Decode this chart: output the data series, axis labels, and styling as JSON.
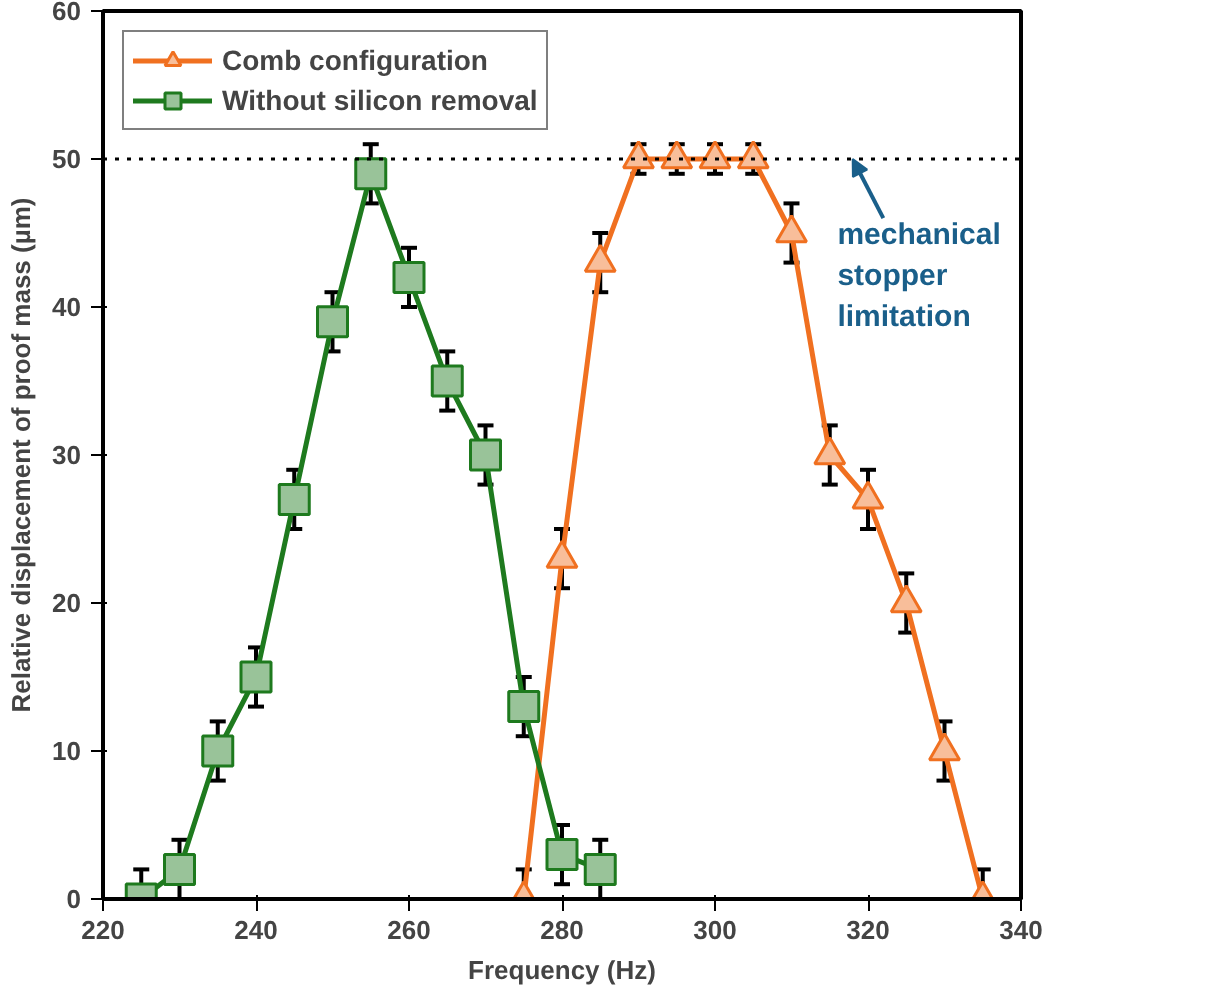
{
  "chart_data": {
    "type": "line",
    "xlabel": "Frequency (Hz)",
    "ylabel": "Relative displacement of proof mass (µm)",
    "xlim": [
      220,
      340
    ],
    "xticks": [
      220,
      240,
      260,
      280,
      300,
      320,
      340
    ],
    "ylim": [
      0,
      60
    ],
    "yticks": [
      0,
      10,
      20,
      30,
      40,
      50,
      60
    ],
    "grid": false,
    "legend": "top left",
    "line_style": "solid",
    "series": [
      {
        "name": "Comb configuration",
        "color": "#f07020",
        "marker": "triangle",
        "x": [
          275,
          280,
          285,
          290,
          295,
          300,
          305,
          310,
          315,
          320,
          325,
          330,
          335
        ],
        "values": [
          0,
          23,
          43,
          50,
          50,
          50,
          50,
          45,
          30,
          27,
          20,
          10,
          0
        ],
        "errors": [
          2,
          2,
          2,
          1,
          1,
          1,
          1,
          2,
          2,
          2,
          2,
          2,
          2
        ]
      },
      {
        "name": "Without silicon removal",
        "color": "#1e7a1e",
        "marker": "square",
        "x": [
          225,
          230,
          235,
          240,
          245,
          250,
          255,
          260,
          265,
          270,
          275,
          280,
          285
        ],
        "values": [
          0,
          2,
          10,
          15,
          27,
          39,
          49,
          42,
          35,
          30,
          13,
          3,
          2
        ],
        "errors": [
          2,
          2,
          2,
          2,
          2,
          2,
          2,
          2,
          2,
          2,
          2,
          2,
          2
        ]
      }
    ],
    "ref_lines": [
      {
        "axis": "y",
        "value": 50,
        "label": "mechanical\nstopper\nlimitation",
        "color": "#000000",
        "line_style": "dotted"
      }
    ]
  }
}
